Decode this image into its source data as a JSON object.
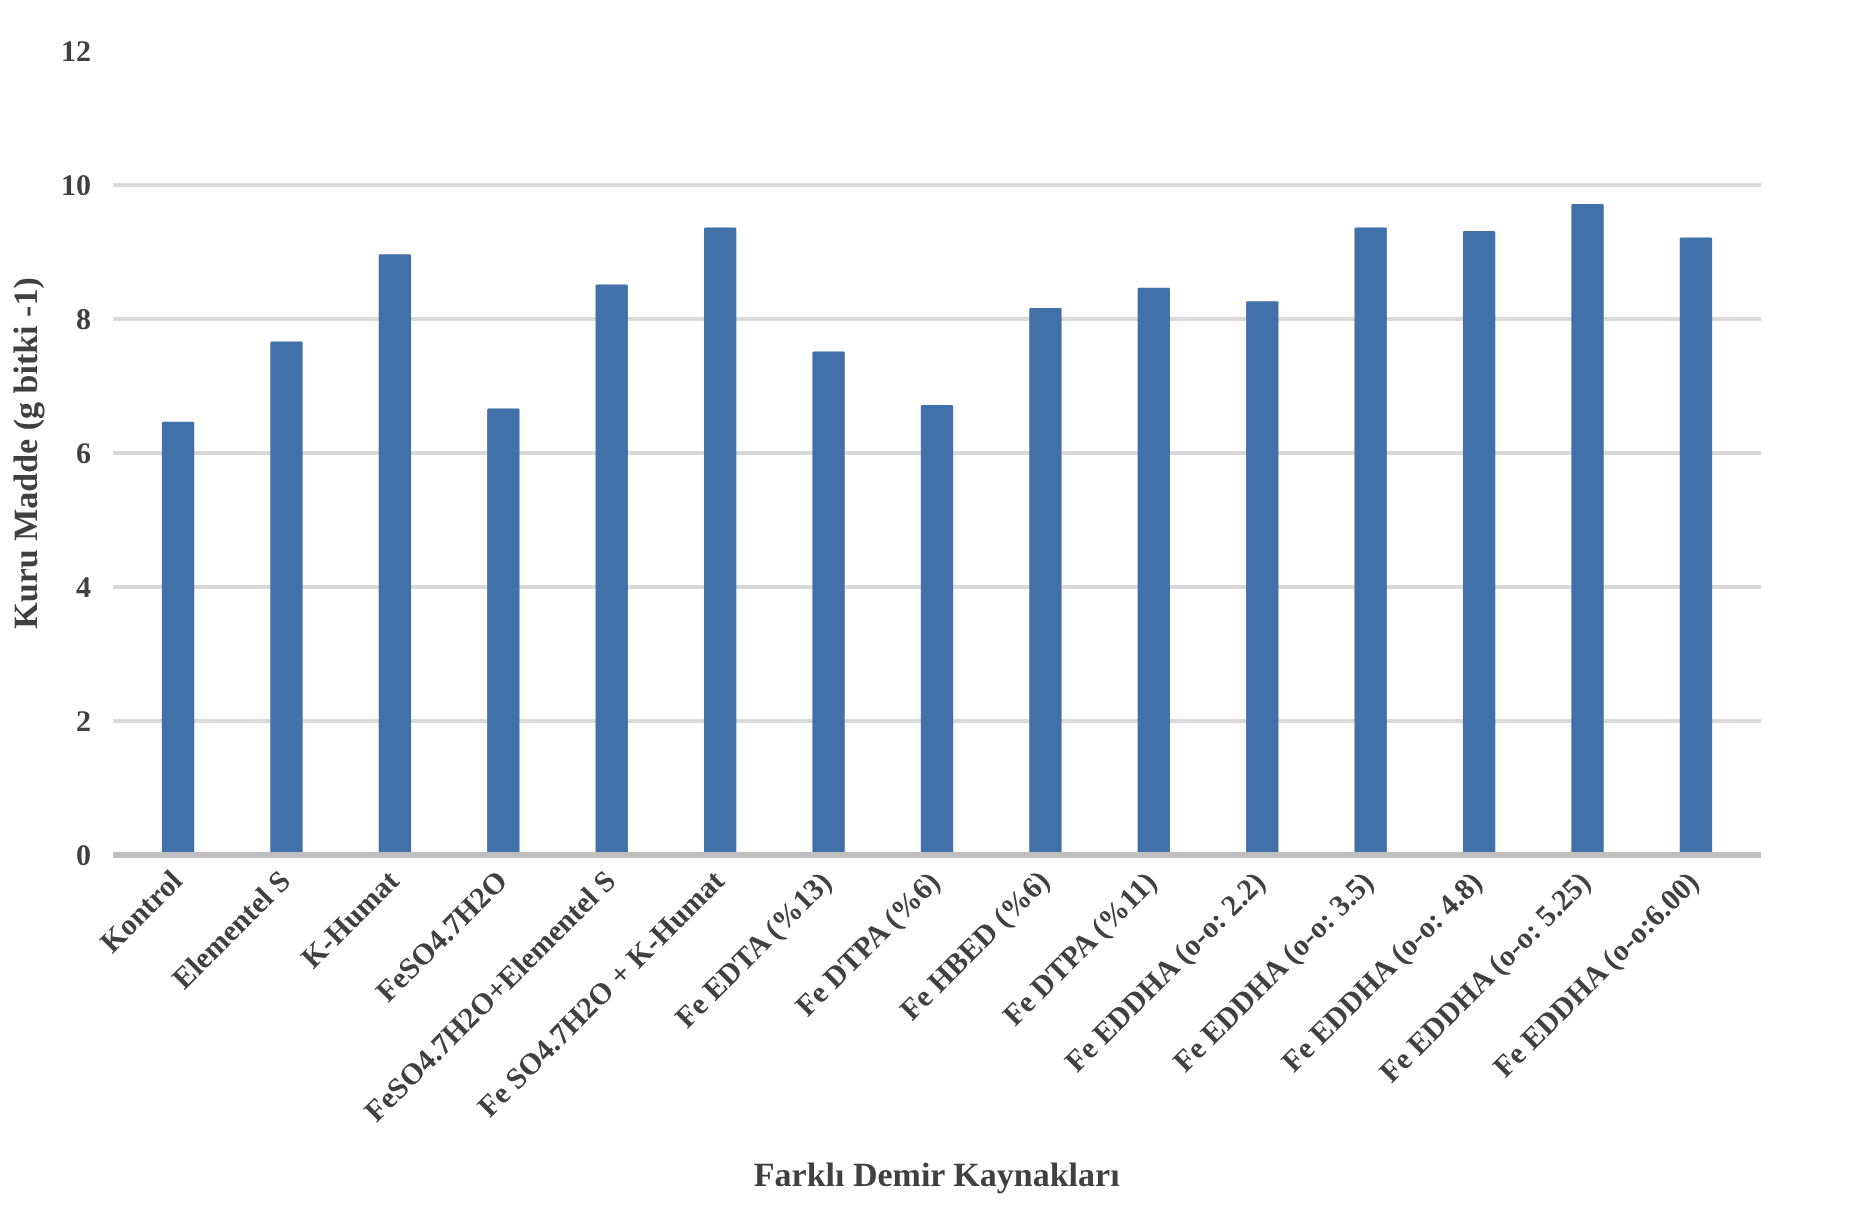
{
  "chart_data": {
    "type": "bar",
    "xlabel": "Farklı Demir Kaynakları",
    "ylabel": "Kuru Madde (g bitki -1)",
    "categories": [
      "Kontrol",
      "Elementel S",
      "K-Humat",
      "FeSO4.7H2O",
      "FeSO4.7H2O+Elementel S",
      "Fe SO4.7H2O + K-Humat",
      "Fe EDTA (%13)",
      "Fe DTPA (%6)",
      "Fe HBED (%6)",
      "Fe DTPA (%11)",
      "Fe EDDHA (o-o: 2.2)",
      "Fe EDDHA (o-o: 3.5)",
      "Fe EDDHA (o-o: 4.8)",
      "Fe EDDHA (o-o: 5.25)",
      "Fe EDDHA (o-o:6.00)"
    ],
    "values": [
      6.45,
      7.65,
      8.95,
      6.65,
      8.5,
      9.35,
      7.5,
      6.7,
      8.15,
      8.45,
      8.25,
      9.35,
      9.3,
      9.7,
      9.2
    ],
    "color": "#4270a8",
    "ylim": [
      0,
      12
    ],
    "yticks": [
      0,
      2,
      4,
      6,
      8,
      10,
      12
    ],
    "grid": "y"
  }
}
